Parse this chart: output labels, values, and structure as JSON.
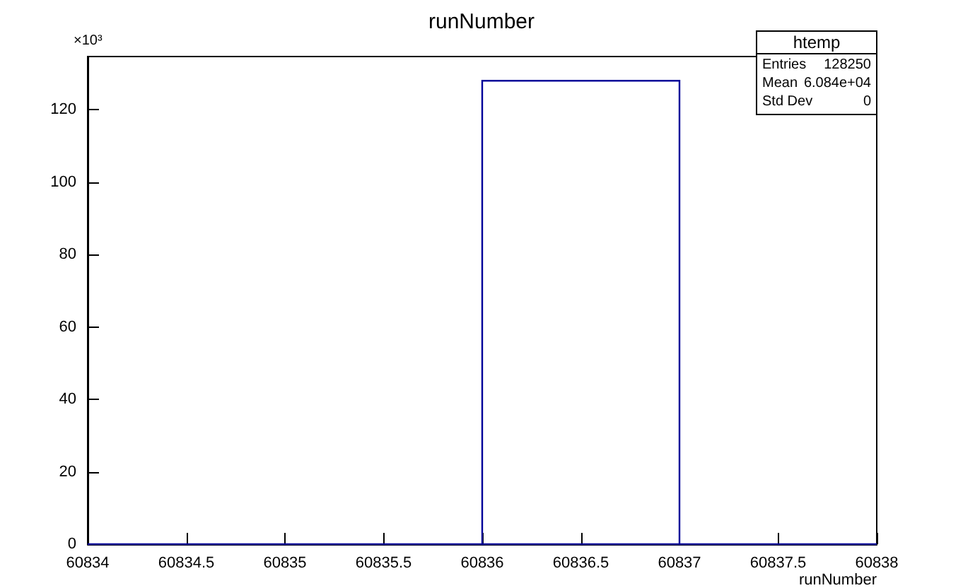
{
  "chart_data": {
    "type": "histogram",
    "title": "runNumber",
    "xlabel": "runNumber",
    "bins": [
      60834,
      60835,
      60836,
      60837,
      60838
    ],
    "values": [
      0,
      0,
      128,
      0
    ],
    "color": "#000099",
    "xlim": [
      60834,
      60838
    ],
    "xticks": [
      60834,
      60834.5,
      60835,
      60835.5,
      60836,
      60836.5,
      60837,
      60837.5,
      60838
    ],
    "ylim": [
      0,
      134.7
    ],
    "yticks": [
      0,
      20,
      40,
      60,
      80,
      100,
      120
    ],
    "grid": false,
    "legend": false,
    "annotations": [
      "×10³",
      "htemp",
      "Entries",
      "128250",
      "Mean",
      "6.084e+04",
      "Std Dev",
      "0"
    ]
  }
}
